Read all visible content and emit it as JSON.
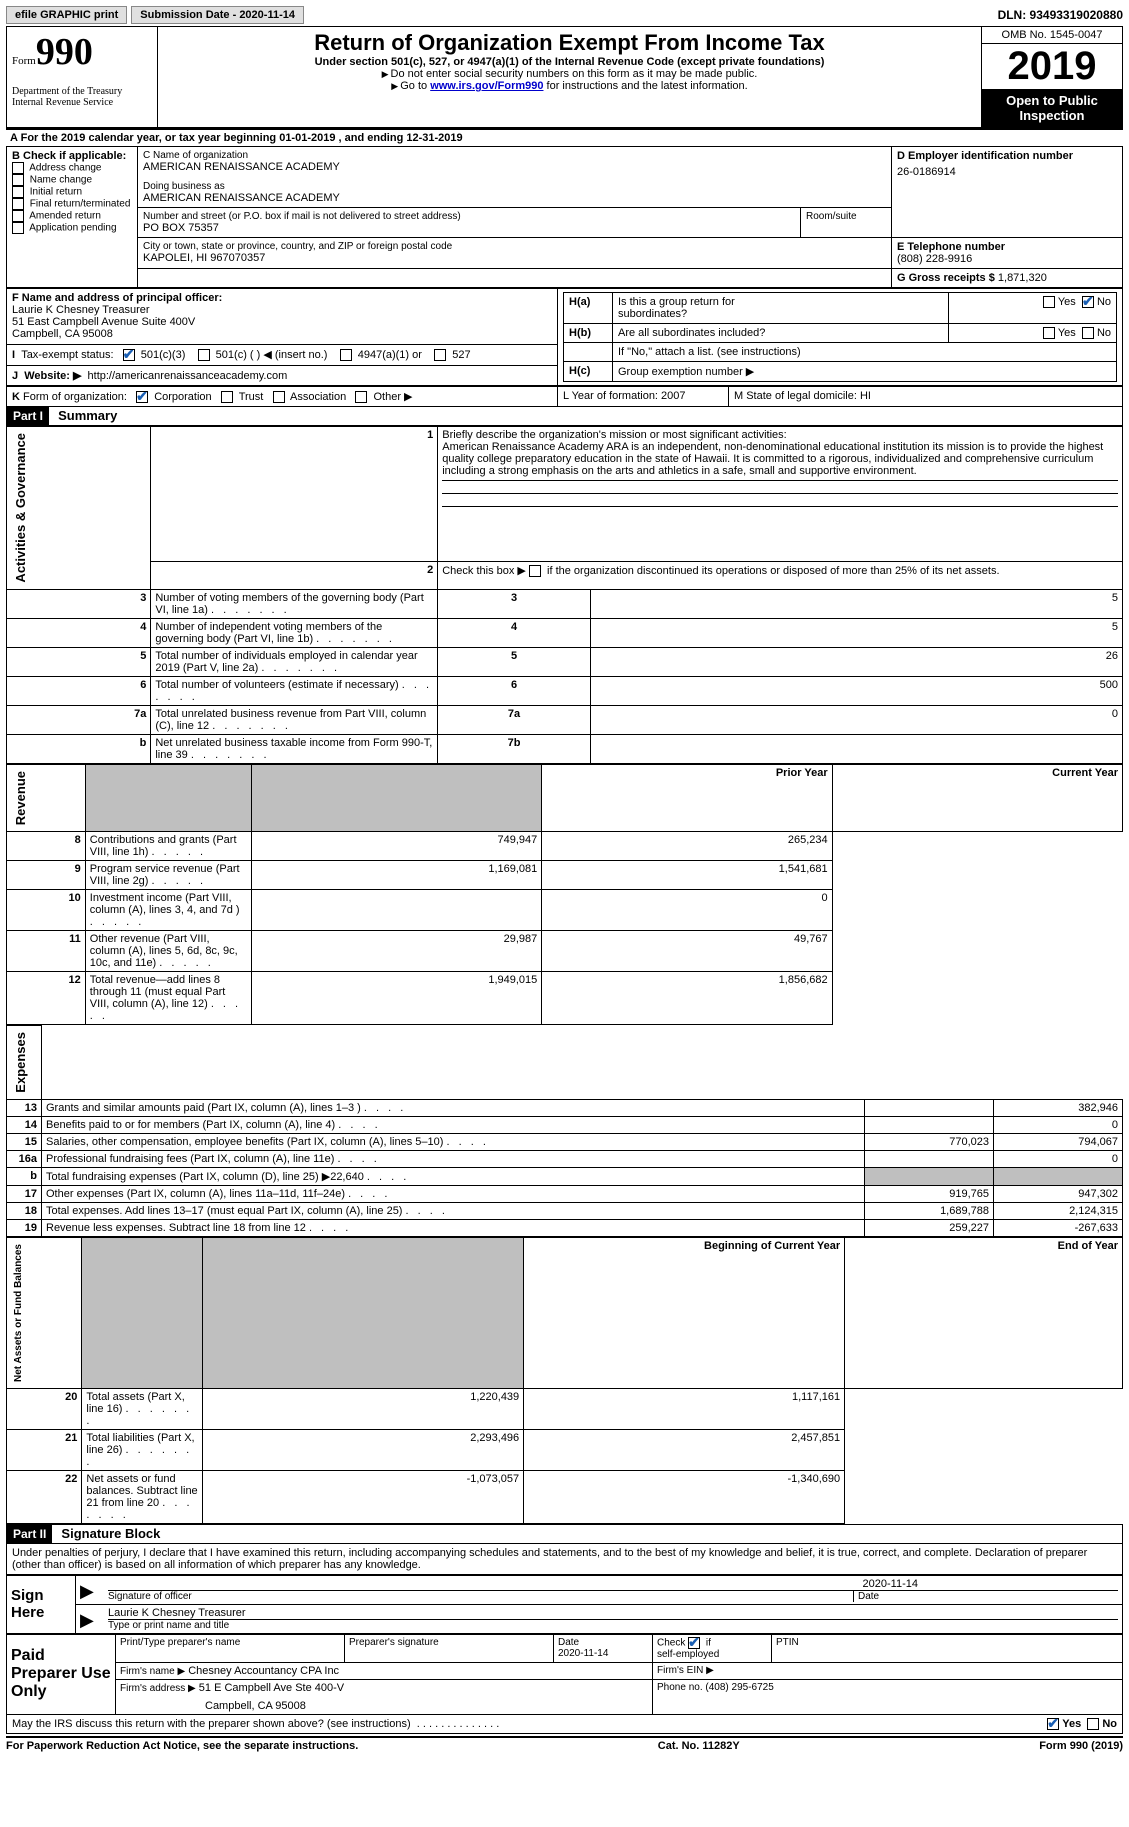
{
  "topbar": {
    "efile": "efile GRAPHIC print",
    "submission": "Submission Date - 2020-11-14",
    "dln": "DLN: 93493319020880"
  },
  "header": {
    "form_word": "Form",
    "form_num": "990",
    "dept": "Department of the Treasury\nInternal Revenue Service",
    "title": "Return of Organization Exempt From Income Tax",
    "sub1": "Under section 501(c), 527, or 4947(a)(1) of the Internal Revenue Code (except private foundations)",
    "sub2": "Do not enter social security numbers on this form as it may be made public.",
    "sub3_a": "Go to ",
    "sub3_link": "www.irs.gov/Form990",
    "sub3_b": " for instructions and the latest information.",
    "omb": "OMB No. 1545-0047",
    "year": "2019",
    "open": "Open to Public Inspection"
  },
  "A": {
    "text": "For the 2019 calendar year, or tax year beginning 01-01-2019    , and ending 12-31-2019"
  },
  "B": {
    "label": "B Check if applicable:",
    "opts": [
      "Address change",
      "Name change",
      "Initial return",
      "Final return/terminated",
      "Amended return",
      "Application pending"
    ]
  },
  "C": {
    "label": "C Name of organization",
    "name": "AMERICAN RENAISSANCE ACADEMY",
    "dba_label": "Doing business as",
    "dba": "AMERICAN RENAISSANCE ACADEMY",
    "street_label": "Number and street (or P.O. box if mail is not delivered to street address)",
    "room_label": "Room/suite",
    "street": "PO BOX 75357",
    "city_label": "City or town, state or province, country, and ZIP or foreign postal code",
    "city": "KAPOLEI, HI   967070357"
  },
  "D": {
    "label": "D Employer identification number",
    "ein": "26-0186914"
  },
  "E": {
    "label": "E Telephone number",
    "phone": "(808) 228-9916"
  },
  "G": {
    "label": "G Gross receipts $",
    "val": "1,871,320"
  },
  "F": {
    "label": "F Name and address of principal officer:",
    "name": "Laurie K Chesney Treasurer",
    "addr1": "51 East Campbell Avenue Suite 400V",
    "addr2": "Campbell, CA   95008"
  },
  "H": {
    "a_label": "Is this a group return for",
    "a_label2": "subordinates?",
    "a_prefix": "H(a)",
    "b_prefix": "H(b)",
    "b_label": "Are all subordinates included?",
    "note": "If \"No,\" attach a list. (see instructions)",
    "c_prefix": "H(c)",
    "c_label": "Group exemption number ▶",
    "yes": "Yes",
    "no": "No"
  },
  "I": {
    "label": "I",
    "text": "Tax-exempt status:",
    "opts": [
      "501(c)(3)",
      "501(c) (   ) ◀ (insert no.)",
      "4947(a)(1) or",
      "527"
    ]
  },
  "J": {
    "label": "J",
    "text": "Website: ▶",
    "url": "http://americanrenaissanceacademy.com"
  },
  "K": {
    "label": "K",
    "text": "Form of organization:",
    "opts": [
      "Corporation",
      "Trust",
      "Association",
      "Other ▶"
    ]
  },
  "L": {
    "text": "L Year of formation: 2007"
  },
  "M": {
    "text": "M State of legal domicile: HI"
  },
  "part1": {
    "header": "Part I",
    "title": "Summary",
    "side1": "Activities & Governance",
    "side2": "Revenue",
    "side3": "Expenses",
    "side4": "Net Assets or Fund Balances",
    "l1_label": "Briefly describe the organization's mission or most significant activities:",
    "l1_text": "American Renaissance Academy ARA is an independent, non-denominational educational institution its mission is to provide the highest quality college preparatory education in the state of Hawaii. It is committed to a rigorous, individualized and comprehensive curriculum including a strong emphasis on the arts and athletics in a safe, small and supportive environment.",
    "l2": "Check this box ▶       if the organization discontinued its operations or disposed of more than 25% of its net assets.",
    "rows_gov": [
      {
        "n": "3",
        "t": "Number of voting members of the governing body (Part VI, line 1a)",
        "k": "3",
        "v": "5"
      },
      {
        "n": "4",
        "t": "Number of independent voting members of the governing body (Part VI, line 1b)",
        "k": "4",
        "v": "5"
      },
      {
        "n": "5",
        "t": "Total number of individuals employed in calendar year 2019 (Part V, line 2a)",
        "k": "5",
        "v": "26"
      },
      {
        "n": "6",
        "t": "Total number of volunteers (estimate if necessary)",
        "k": "6",
        "v": "500"
      },
      {
        "n": "7a",
        "t": "Total unrelated business revenue from Part VIII, column (C), line 12",
        "k": "7a",
        "v": "0"
      },
      {
        "n": "b",
        "t": "Net unrelated business taxable income from Form 990-T, line 39",
        "k": "7b",
        "v": ""
      }
    ],
    "col_prior": "Prior Year",
    "col_current": "Current Year",
    "rows_rev": [
      {
        "n": "8",
        "t": "Contributions and grants (Part VIII, line 1h)",
        "p": "749,947",
        "c": "265,234"
      },
      {
        "n": "9",
        "t": "Program service revenue (Part VIII, line 2g)",
        "p": "1,169,081",
        "c": "1,541,681"
      },
      {
        "n": "10",
        "t": "Investment income (Part VIII, column (A), lines 3, 4, and 7d )",
        "p": "",
        "c": "0"
      },
      {
        "n": "11",
        "t": "Other revenue (Part VIII, column (A), lines 5, 6d, 8c, 9c, 10c, and 11e)",
        "p": "29,987",
        "c": "49,767"
      },
      {
        "n": "12",
        "t": "Total revenue—add lines 8 through 11 (must equal Part VIII, column (A), line 12)",
        "p": "1,949,015",
        "c": "1,856,682"
      }
    ],
    "rows_exp": [
      {
        "n": "13",
        "t": "Grants and similar amounts paid (Part IX, column (A), lines 1–3 )",
        "p": "",
        "c": "382,946"
      },
      {
        "n": "14",
        "t": "Benefits paid to or for members (Part IX, column (A), line 4)",
        "p": "",
        "c": "0"
      },
      {
        "n": "15",
        "t": "Salaries, other compensation, employee benefits (Part IX, column (A), lines 5–10)",
        "p": "770,023",
        "c": "794,067"
      },
      {
        "n": "16a",
        "t": "Professional fundraising fees (Part IX, column (A), line 11e)",
        "p": "",
        "c": "0"
      },
      {
        "n": "b",
        "t": "Total fundraising expenses (Part IX, column (D), line 25) ▶22,640",
        "p": "shaded",
        "c": "shaded"
      },
      {
        "n": "17",
        "t": "Other expenses (Part IX, column (A), lines 11a–11d, 11f–24e)",
        "p": "919,765",
        "c": "947,302"
      },
      {
        "n": "18",
        "t": "Total expenses. Add lines 13–17 (must equal Part IX, column (A), line 25)",
        "p": "1,689,788",
        "c": "2,124,315"
      },
      {
        "n": "19",
        "t": "Revenue less expenses. Subtract line 18 from line 12",
        "p": "259,227",
        "c": "-267,633"
      }
    ],
    "col_begin": "Beginning of Current Year",
    "col_end": "End of Year",
    "rows_net": [
      {
        "n": "20",
        "t": "Total assets (Part X, line 16)",
        "p": "1,220,439",
        "c": "1,117,161"
      },
      {
        "n": "21",
        "t": "Total liabilities (Part X, line 26)",
        "p": "2,293,496",
        "c": "2,457,851"
      },
      {
        "n": "22",
        "t": "Net assets or fund balances. Subtract line 21 from line 20",
        "p": "-1,073,057",
        "c": "-1,340,690"
      }
    ]
  },
  "part2": {
    "header": "Part II",
    "title": "Signature Block",
    "decl": "Under penalties of perjury, I declare that I have examined this return, including accompanying schedules and statements, and to the best of my knowledge and belief, it is true, correct, and complete. Declaration of preparer (other than officer) is based on all information of which preparer has any knowledge.",
    "sign_here": "Sign Here",
    "sig_officer": "Signature of officer",
    "date": "Date",
    "sig_date": "2020-11-14",
    "name_title": "Laurie K Chesney  Treasurer",
    "type_name": "Type or print name and title",
    "paid": "Paid Preparer Use Only",
    "print_name": "Print/Type preparer's name",
    "prep_sig": "Preparer's signature",
    "prep_date_label": "Date",
    "prep_date": "2020-11-14",
    "check_self": "Check         if self-employed",
    "ptin": "PTIN",
    "firm_name_label": "Firm's name    ▶",
    "firm_name": "Chesney Accountancy CPA Inc",
    "firm_ein": "Firm's EIN ▶",
    "firm_addr_label": "Firm's address ▶",
    "firm_addr1": "51 E Campbell Ave Ste 400-V",
    "firm_addr2": "Campbell, CA   95008",
    "firm_phone_label": "Phone no.",
    "firm_phone": "(408) 295-6725",
    "discuss": "May the IRS discuss this return with the preparer shown above? (see instructions)"
  },
  "footer": {
    "left": "For Paperwork Reduction Act Notice, see the separate instructions.",
    "mid": "Cat. No. 11282Y",
    "right": "Form 990 (2019)"
  }
}
